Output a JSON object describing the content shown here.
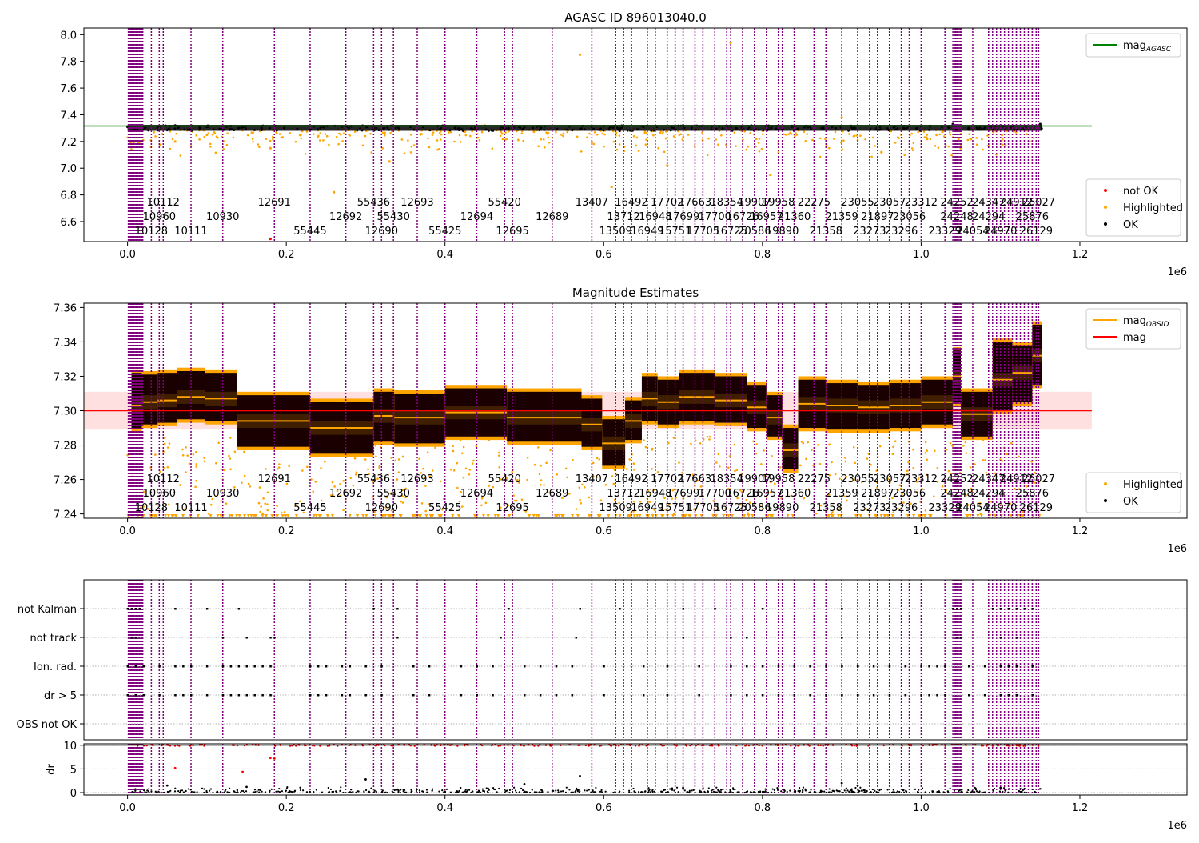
{
  "chart_data": [
    {
      "type": "scatter",
      "title": "AGASC ID 896013040.0",
      "xlabel": "",
      "ylabel": "",
      "xlim": [
        -55000,
        1335000
      ],
      "ylim": [
        6.45,
        8.05
      ],
      "x_ticks": [
        0,
        200000,
        400000,
        600000,
        800000,
        1000000,
        1200000
      ],
      "x_tick_labels": [
        "0.0",
        "0.2",
        "0.4",
        "0.6",
        "0.8",
        "1.0",
        "1.2"
      ],
      "x_offset_label": "1e6",
      "y_ticks": [
        6.6,
        6.8,
        7.0,
        7.2,
        7.4,
        7.6,
        7.8,
        8.0
      ],
      "y_tick_labels": [
        "6.6",
        "6.8",
        "7.0",
        "7.2",
        "7.4",
        "7.6",
        "7.8",
        "8.0"
      ],
      "grid": false,
      "legend_placement_upper": "top-right",
      "legend_upper": [
        {
          "label": "mag",
          "sub": "AGASC",
          "color": "#008000",
          "kind": "line"
        }
      ],
      "legend_placement_lower": "bottom-right",
      "legend_lower": [
        {
          "label": "not OK",
          "color": "#ff0000",
          "kind": "dot"
        },
        {
          "label": "Highlighted",
          "color": "#ffa500",
          "kind": "dot"
        },
        {
          "label": "OK",
          "color": "#000000",
          "kind": "dot"
        }
      ],
      "mag_agasc": 7.316,
      "series": [
        {
          "name": "OK",
          "color": "#000000",
          "x": [
            0,
            20000,
            40000,
            60000,
            100000,
            140000,
            230000,
            310000,
            400000,
            480000,
            570000,
            620000,
            650000,
            700000,
            760000,
            840000,
            860000,
            1000000,
            1040000,
            1060000,
            1100000,
            1150000
          ],
          "y": [
            7.31,
            7.3,
            7.31,
            7.32,
            7.31,
            7.3,
            7.29,
            7.3,
            7.3,
            7.3,
            7.29,
            7.28,
            7.31,
            7.32,
            7.31,
            7.28,
            7.31,
            7.31,
            7.33,
            7.3,
            7.32,
            7.33
          ]
        },
        {
          "name": "Highlighted",
          "color": "#ffa500",
          "x": [
            60000,
            100000,
            180000,
            260000,
            330000,
            400000,
            450000,
            570000,
            610000,
            680000,
            760000,
            810000,
            900000,
            950000,
            1050000
          ],
          "y": [
            7.2,
            7.25,
            7.15,
            6.82,
            7.05,
            7.08,
            7.32,
            7.85,
            6.86,
            7.02,
            7.94,
            6.95,
            7.38,
            7.12,
            7.15
          ]
        },
        {
          "name": "not OK",
          "color": "#ff0000",
          "x": [
            180000
          ],
          "y": [
            6.47
          ]
        }
      ],
      "obsid_labels": [
        {
          "text": "10112",
          "x": 45000,
          "row": 1
        },
        {
          "text": "12691",
          "x": 185000,
          "row": 1
        },
        {
          "text": "55436",
          "x": 310000,
          "row": 1
        },
        {
          "text": "12693",
          "x": 365000,
          "row": 1
        },
        {
          "text": "55420",
          "x": 475000,
          "row": 1
        },
        {
          "text": "13407",
          "x": 585000,
          "row": 1
        },
        {
          "text": "16492",
          "x": 635000,
          "row": 1
        },
        {
          "text": "17702",
          "x": 680000,
          "row": 1
        },
        {
          "text": "17663",
          "x": 715000,
          "row": 1
        },
        {
          "text": "18354",
          "x": 755000,
          "row": 1
        },
        {
          "text": "19907",
          "x": 790000,
          "row": 1
        },
        {
          "text": "19958",
          "x": 820000,
          "row": 1
        },
        {
          "text": "22275",
          "x": 865000,
          "row": 1
        },
        {
          "text": "23055",
          "x": 920000,
          "row": 1
        },
        {
          "text": "23057",
          "x": 960000,
          "row": 1
        },
        {
          "text": "23312",
          "x": 1000000,
          "row": 1
        },
        {
          "text": "24252",
          "x": 1045000,
          "row": 1
        },
        {
          "text": "24347",
          "x": 1085000,
          "row": 1
        },
        {
          "text": "24912",
          "x": 1120000,
          "row": 1
        },
        {
          "text": "26027",
          "x": 1148000,
          "row": 1
        },
        {
          "text": "10960",
          "x": 40000,
          "row": 2
        },
        {
          "text": "10930",
          "x": 120000,
          "row": 2
        },
        {
          "text": "12692",
          "x": 275000,
          "row": 2
        },
        {
          "text": "55430",
          "x": 335000,
          "row": 2
        },
        {
          "text": "12694",
          "x": 440000,
          "row": 2
        },
        {
          "text": "12689",
          "x": 535000,
          "row": 2
        },
        {
          "text": "13712",
          "x": 625000,
          "row": 2
        },
        {
          "text": "16948",
          "x": 665000,
          "row": 2
        },
        {
          "text": "17699",
          "x": 700000,
          "row": 2
        },
        {
          "text": "17700",
          "x": 740000,
          "row": 2
        },
        {
          "text": "16726",
          "x": 775000,
          "row": 2
        },
        {
          "text": "16957",
          "x": 805000,
          "row": 2
        },
        {
          "text": "21360",
          "x": 840000,
          "row": 2
        },
        {
          "text": "21359",
          "x": 900000,
          "row": 2
        },
        {
          "text": "21897",
          "x": 945000,
          "row": 2
        },
        {
          "text": "23056",
          "x": 985000,
          "row": 2
        },
        {
          "text": "24248",
          "x": 1045000,
          "row": 2
        },
        {
          "text": "24294",
          "x": 1085000,
          "row": 2
        },
        {
          "text": "25876",
          "x": 1140000,
          "row": 2
        },
        {
          "text": "10128",
          "x": 30000,
          "row": 3
        },
        {
          "text": "10111",
          "x": 80000,
          "row": 3
        },
        {
          "text": "55445",
          "x": 230000,
          "row": 3
        },
        {
          "text": "12690",
          "x": 320000,
          "row": 3
        },
        {
          "text": "55425",
          "x": 400000,
          "row": 3
        },
        {
          "text": "12695",
          "x": 485000,
          "row": 3
        },
        {
          "text": "13509",
          "x": 615000,
          "row": 3
        },
        {
          "text": "16949",
          "x": 655000,
          "row": 3
        },
        {
          "text": "15751",
          "x": 690000,
          "row": 3
        },
        {
          "text": "17705",
          "x": 725000,
          "row": 3
        },
        {
          "text": "16725",
          "x": 760000,
          "row": 3
        },
        {
          "text": "20586",
          "x": 790000,
          "row": 3
        },
        {
          "text": "19890",
          "x": 825000,
          "row": 3
        },
        {
          "text": "21358",
          "x": 880000,
          "row": 3
        },
        {
          "text": "23273",
          "x": 935000,
          "row": 3
        },
        {
          "text": "23296",
          "x": 975000,
          "row": 3
        },
        {
          "text": "23329",
          "x": 1030000,
          "row": 3
        },
        {
          "text": "24054",
          "x": 1065000,
          "row": 3
        },
        {
          "text": "24970",
          "x": 1100000,
          "row": 3
        },
        {
          "text": "26129",
          "x": 1145000,
          "row": 3
        }
      ]
    },
    {
      "type": "scatter",
      "title": "Magnitude Estimates",
      "xlabel": "",
      "ylabel": "",
      "xlim": [
        -55000,
        1335000
      ],
      "ylim": [
        7.2375,
        7.3625
      ],
      "x_ticks": [
        0,
        200000,
        400000,
        600000,
        800000,
        1000000,
        1200000
      ],
      "x_tick_labels": [
        "0.0",
        "0.2",
        "0.4",
        "0.6",
        "0.8",
        "1.0",
        "1.2"
      ],
      "x_offset_label": "1e6",
      "y_ticks": [
        7.24,
        7.26,
        7.28,
        7.3,
        7.32,
        7.34,
        7.36
      ],
      "y_tick_labels": [
        "7.24",
        "7.26",
        "7.28",
        "7.30",
        "7.32",
        "7.34",
        "7.36"
      ],
      "grid": false,
      "legend_placement_upper": "top-right",
      "legend_upper": [
        {
          "label": "mag",
          "sub": "OBSID",
          "color": "#ffa500",
          "kind": "line"
        },
        {
          "label": "mag",
          "sub": "",
          "color": "#ff0000",
          "kind": "line"
        }
      ],
      "legend_placement_lower": "bottom-right",
      "legend_lower": [
        {
          "label": "Highlighted",
          "color": "#ffa500",
          "kind": "dot"
        },
        {
          "label": "OK",
          "color": "#000000",
          "kind": "dot"
        }
      ],
      "mag": 7.3,
      "mag_band": [
        7.289,
        7.311
      ],
      "segments": [
        {
          "x0": 5000,
          "x1": 18000,
          "mean": 7.303,
          "low": 7.29,
          "high": 7.322
        },
        {
          "x0": 18000,
          "x1": 38000,
          "mean": 7.305,
          "low": 7.292,
          "high": 7.321
        },
        {
          "x0": 38000,
          "x1": 62000,
          "mean": 7.306,
          "low": 7.293,
          "high": 7.322
        },
        {
          "x0": 62000,
          "x1": 98000,
          "mean": 7.308,
          "low": 7.295,
          "high": 7.323
        },
        {
          "x0": 98000,
          "x1": 138000,
          "mean": 7.307,
          "low": 7.294,
          "high": 7.322
        },
        {
          "x0": 138000,
          "x1": 230000,
          "mean": 7.294,
          "low": 7.279,
          "high": 7.309
        },
        {
          "x0": 230000,
          "x1": 310000,
          "mean": 7.29,
          "low": 7.275,
          "high": 7.305
        },
        {
          "x0": 310000,
          "x1": 336000,
          "mean": 7.297,
          "low": 7.282,
          "high": 7.311
        },
        {
          "x0": 336000,
          "x1": 400000,
          "mean": 7.296,
          "low": 7.281,
          "high": 7.31
        },
        {
          "x0": 400000,
          "x1": 478000,
          "mean": 7.299,
          "low": 7.285,
          "high": 7.313
        },
        {
          "x0": 478000,
          "x1": 572000,
          "mean": 7.296,
          "low": 7.282,
          "high": 7.311
        },
        {
          "x0": 572000,
          "x1": 598000,
          "mean": 7.292,
          "low": 7.279,
          "high": 7.307
        },
        {
          "x0": 598000,
          "x1": 627000,
          "mean": 7.281,
          "low": 7.268,
          "high": 7.295
        },
        {
          "x0": 627000,
          "x1": 648000,
          "mean": 7.294,
          "low": 7.283,
          "high": 7.306
        },
        {
          "x0": 648000,
          "x1": 668000,
          "mean": 7.307,
          "low": 7.294,
          "high": 7.32
        },
        {
          "x0": 668000,
          "x1": 695000,
          "mean": 7.305,
          "low": 7.292,
          "high": 7.318
        },
        {
          "x0": 695000,
          "x1": 740000,
          "mean": 7.308,
          "low": 7.294,
          "high": 7.322
        },
        {
          "x0": 740000,
          "x1": 780000,
          "mean": 7.306,
          "low": 7.293,
          "high": 7.32
        },
        {
          "x0": 780000,
          "x1": 805000,
          "mean": 7.302,
          "low": 7.29,
          "high": 7.315
        },
        {
          "x0": 805000,
          "x1": 825000,
          "mean": 7.296,
          "low": 7.285,
          "high": 7.309
        },
        {
          "x0": 825000,
          "x1": 845000,
          "mean": 7.277,
          "low": 7.266,
          "high": 7.29
        },
        {
          "x0": 845000,
          "x1": 880000,
          "mean": 7.304,
          "low": 7.29,
          "high": 7.318
        },
        {
          "x0": 880000,
          "x1": 920000,
          "mean": 7.303,
          "low": 7.289,
          "high": 7.316
        },
        {
          "x0": 920000,
          "x1": 960000,
          "mean": 7.302,
          "low": 7.289,
          "high": 7.315
        },
        {
          "x0": 960000,
          "x1": 1000000,
          "mean": 7.303,
          "low": 7.29,
          "high": 7.316
        },
        {
          "x0": 1000000,
          "x1": 1040000,
          "mean": 7.305,
          "low": 7.292,
          "high": 7.318
        },
        {
          "x0": 1040000,
          "x1": 1050000,
          "mean": 7.32,
          "low": 7.305,
          "high": 7.335
        },
        {
          "x0": 1050000,
          "x1": 1090000,
          "mean": 7.298,
          "low": 7.285,
          "high": 7.311
        },
        {
          "x0": 1090000,
          "x1": 1115000,
          "mean": 7.318,
          "low": 7.3,
          "high": 7.34
        },
        {
          "x0": 1115000,
          "x1": 1140000,
          "mean": 7.322,
          "low": 7.305,
          "high": 7.338
        },
        {
          "x0": 1140000,
          "x1": 1152000,
          "mean": 7.332,
          "low": 7.315,
          "high": 7.35
        }
      ],
      "obsid_labels_same_as_top": true
    },
    {
      "type": "scatter",
      "title": "",
      "xlabel": "",
      "xlim": [
        -55000,
        1335000
      ],
      "x_ticks": [
        0,
        200000,
        400000,
        600000,
        800000,
        1000000,
        1200000
      ],
      "x_tick_labels": [
        "0.0",
        "0.2",
        "0.4",
        "0.6",
        "0.8",
        "1.0",
        "1.2"
      ],
      "x_offset_label": "1e6",
      "flag_categories": [
        "not Kalman",
        "not track",
        "Ion. rad.",
        "dr > 5",
        "OBS not OK"
      ],
      "grid": true,
      "flag_points": {
        "not Kalman": [
          0,
          5000,
          10000,
          15000,
          60000,
          100000,
          140000,
          310000,
          340000,
          480000,
          570000,
          620000,
          700000,
          740000,
          800000,
          900000,
          1040000,
          1045000,
          1050000,
          1090000,
          1100000,
          1110000,
          1120000,
          1130000,
          1140000
        ],
        "not track": [
          5000,
          10000,
          120000,
          150000,
          180000,
          185000,
          340000,
          470000,
          565000,
          700000,
          760000,
          780000,
          900000,
          1045000,
          1050000,
          1100000,
          1120000
        ],
        "Ion. rad.": [
          0,
          10000,
          20000,
          40000,
          60000,
          70000,
          80000,
          100000,
          120000,
          130000,
          140000,
          150000,
          160000,
          170000,
          180000,
          230000,
          240000,
          250000,
          270000,
          280000,
          300000,
          320000,
          360000,
          380000,
          420000,
          440000,
          460000,
          500000,
          520000,
          540000,
          560000,
          600000,
          650000,
          680000,
          720000,
          760000,
          780000,
          800000,
          820000,
          840000,
          860000,
          880000,
          900000,
          920000,
          940000,
          960000,
          980000,
          1000000,
          1010000,
          1020000,
          1030000,
          1060000,
          1080000,
          1100000,
          1110000,
          1120000,
          1140000
        ],
        "dr > 5": [
          0,
          10000,
          20000,
          40000,
          60000,
          70000,
          80000,
          100000,
          120000,
          130000,
          140000,
          150000,
          160000,
          170000,
          180000,
          230000,
          240000,
          250000,
          270000,
          280000,
          300000,
          320000,
          360000,
          380000,
          420000,
          440000,
          460000,
          500000,
          520000,
          540000,
          560000,
          600000,
          650000,
          680000,
          720000,
          760000,
          780000,
          800000,
          820000,
          840000,
          860000,
          880000,
          900000,
          920000,
          940000,
          960000,
          980000,
          1000000,
          1010000,
          1020000,
          1030000,
          1060000,
          1080000,
          1100000,
          1110000,
          1120000,
          1140000
        ]
      }
    },
    {
      "type": "scatter",
      "title": "",
      "xlabel": "",
      "ylabel": "dr",
      "xlim": [
        -55000,
        1335000
      ],
      "ylim": [
        -0.5,
        10.3
      ],
      "y_ticks": [
        0,
        5,
        10
      ],
      "y_tick_labels": [
        "0",
        "5",
        "10"
      ],
      "x_ticks": [
        0,
        200000,
        400000,
        600000,
        800000,
        1000000,
        1200000
      ],
      "x_tick_labels": [
        "0.0",
        "0.2",
        "0.4",
        "0.6",
        "0.8",
        "1.0",
        "1.2"
      ],
      "x_offset_label": "1e6",
      "grid": true,
      "threshold_line": 10,
      "series": [
        {
          "name": "OK",
          "color": "#000000",
          "x": [
            50000,
            150000,
            300000,
            500000,
            570000,
            700000,
            900000,
            920000,
            1100000
          ],
          "y": [
            1.5,
            1.2,
            2.8,
            1.8,
            3.5,
            1.0,
            2.0,
            1.5,
            1.0
          ]
        },
        {
          "name": "not OK",
          "color": "#ff0000",
          "x": [
            60000,
            145000,
            180000,
            185000
          ],
          "y": [
            5.2,
            4.4,
            7.3,
            7.2
          ]
        }
      ]
    }
  ]
}
